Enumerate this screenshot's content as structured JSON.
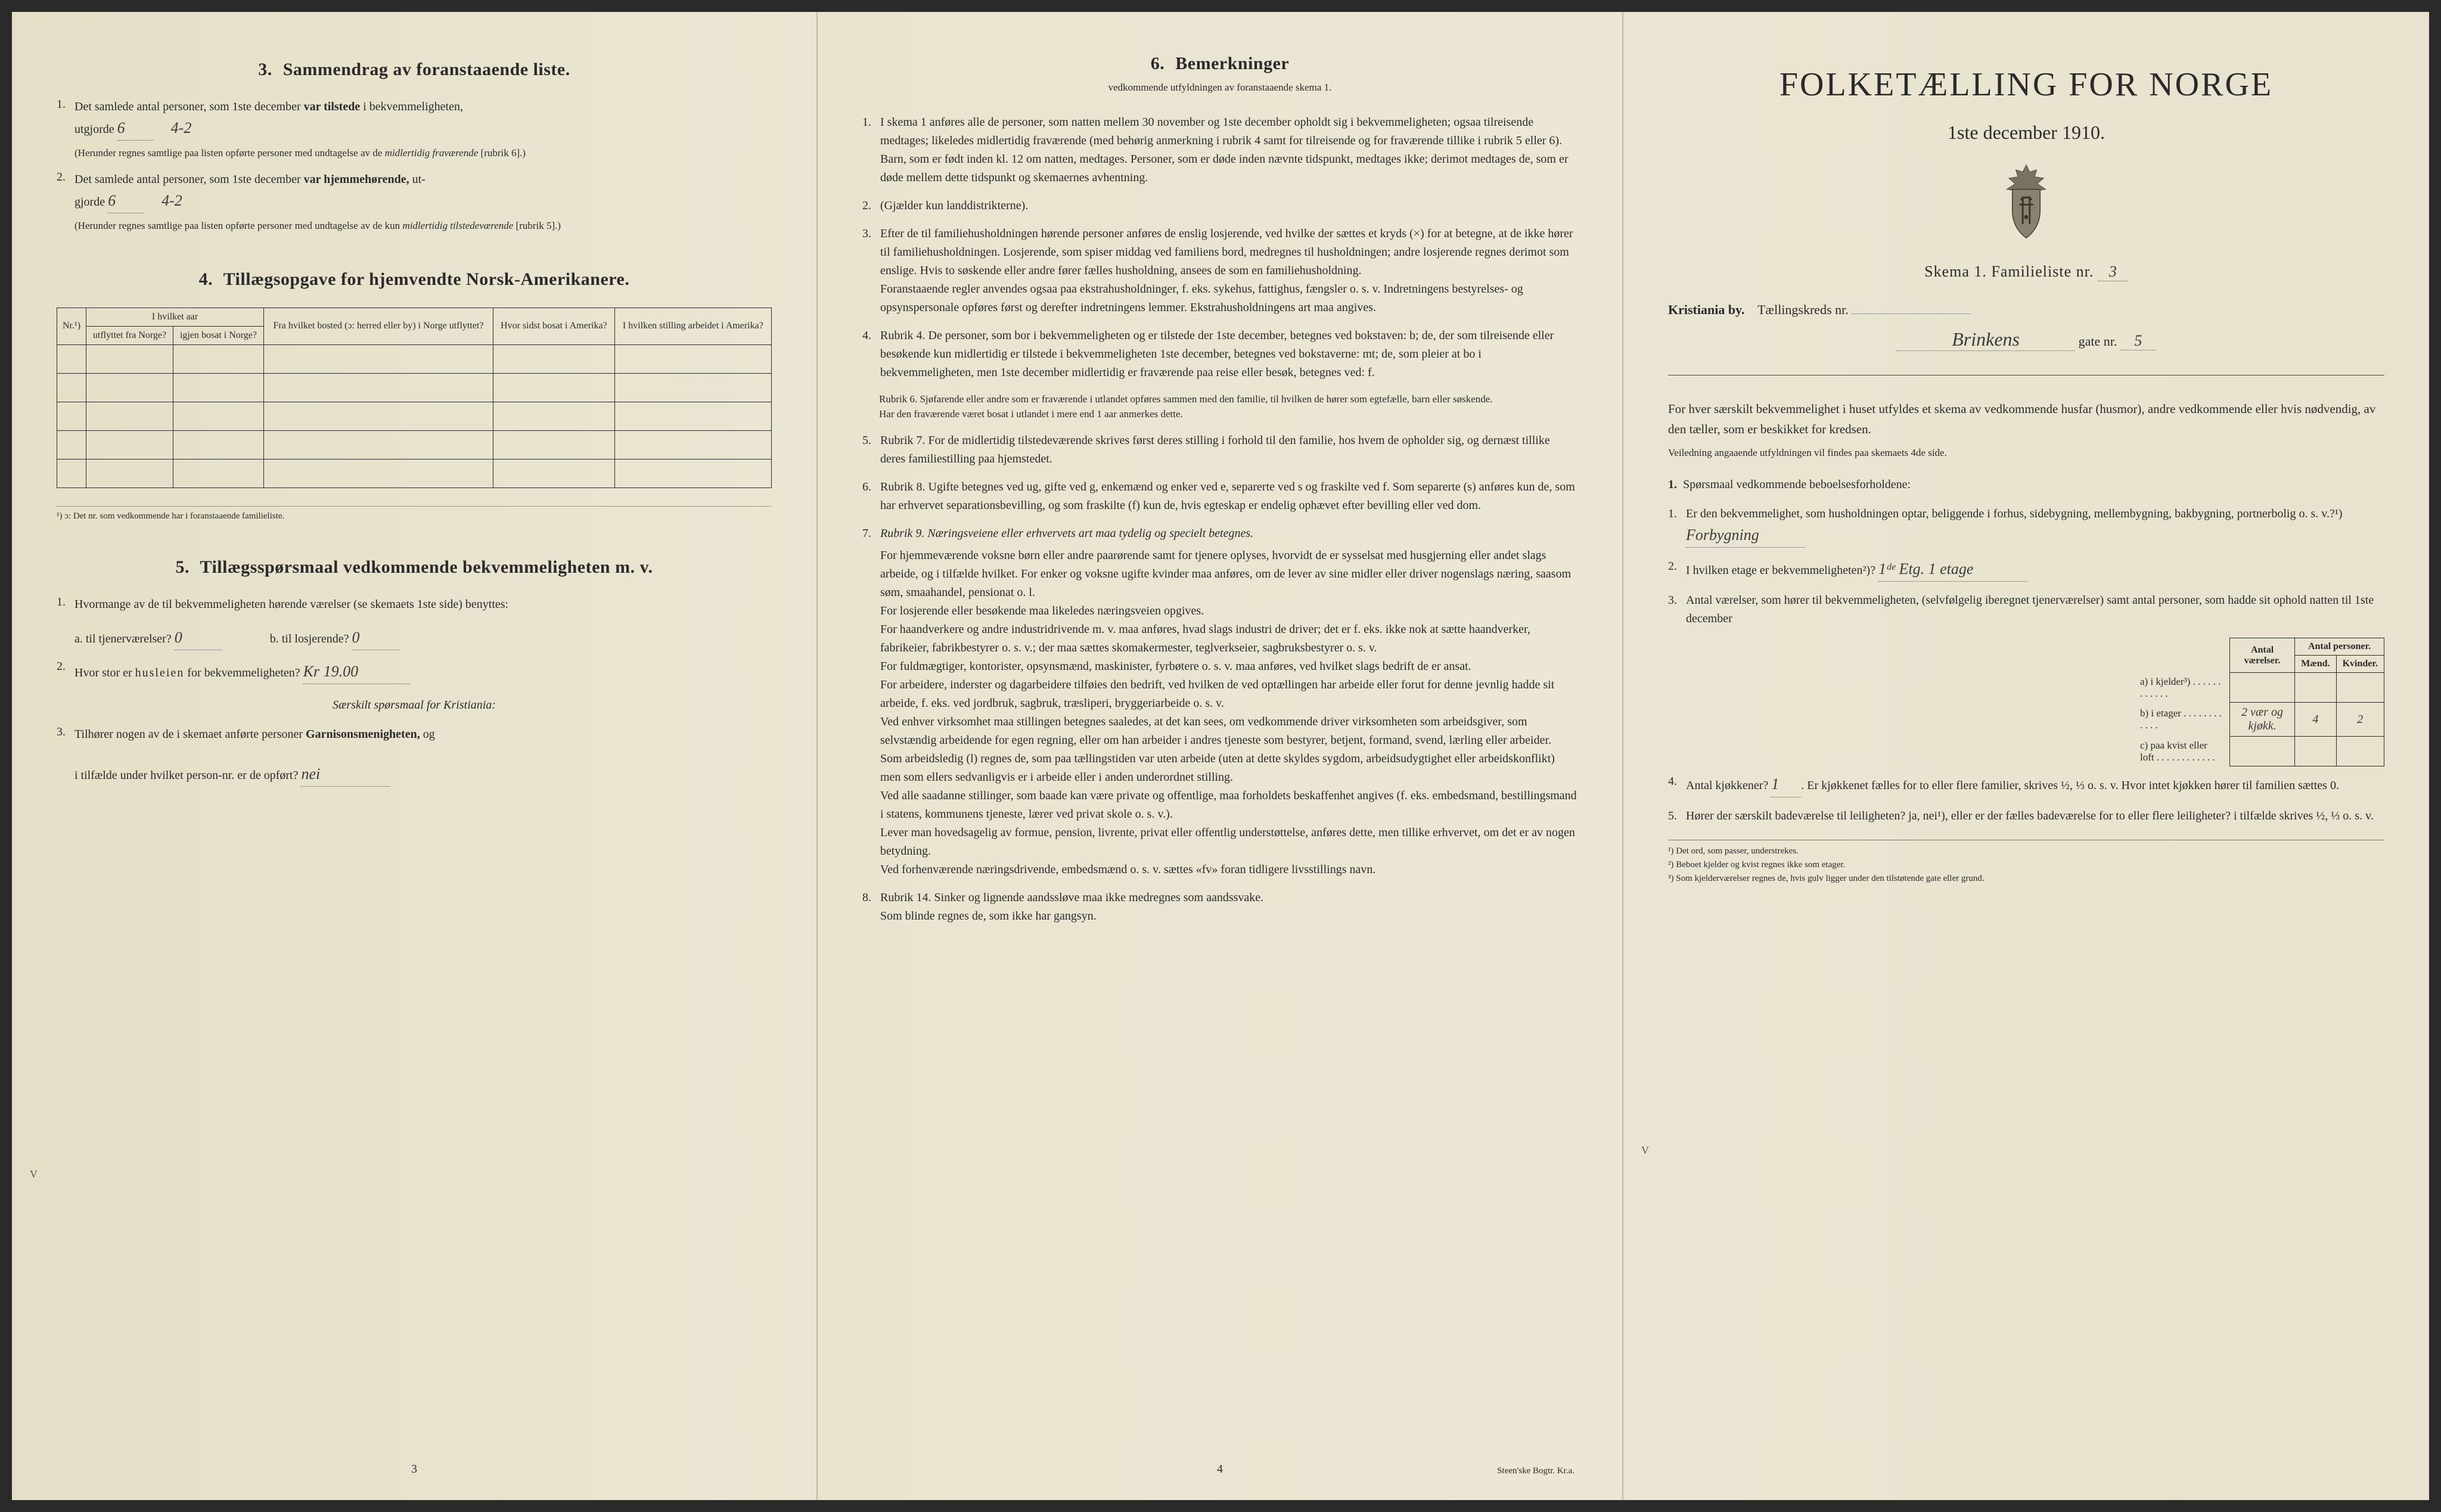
{
  "page1": {
    "s3": {
      "heading_num": "3.",
      "heading": "Sammendrag av foranstaaende liste.",
      "item1_pre": "Det samlede antal personer, som 1ste december",
      "item1_bold": "var tilstede",
      "item1_post": "i bekvemmeligheten,",
      "item1_line2": "utgjorde",
      "item1_hw1": "6",
      "item1_hw2": "4-2",
      "item1_note": "(Herunder regnes samtlige paa listen opførte personer med undtagelse av de",
      "item1_note_em": "midlertidig fraværende",
      "item1_note_end": "[rubrik 6].)",
      "item2_pre": "Det samlede antal personer, som 1ste december",
      "item2_bold": "var hjemmehørende,",
      "item2_post": "ut-",
      "item2_line2": "gjorde",
      "item2_hw1": "6",
      "item2_hw2": "4-2",
      "item2_note": "(Herunder regnes samtlige paa listen opførte personer med undtagelse av de kun",
      "item2_note_em": "midlertidig tilstedeværende",
      "item2_note_end": "[rubrik 5].)"
    },
    "s4": {
      "heading_num": "4.",
      "heading": "Tillægsopgave for hjemvendte Norsk-Amerikanere.",
      "th_nr": "Nr.¹)",
      "th_aar": "I hvilket aar",
      "th_utflyttet": "utflyttet fra Norge?",
      "th_igjen": "igjen bosat i Norge?",
      "th_bosted": "Fra hvilket bosted (ɔ: herred eller by) i Norge utflyttet?",
      "th_sidst": "Hvor sidst bosat i Amerika?",
      "th_stilling": "I hvilken stilling arbeidet i Amerika?",
      "footnote": "¹) ɔ: Det nr. som vedkommende har i foranstaaende familieliste."
    },
    "s5": {
      "heading_num": "5.",
      "heading": "Tillægsspørsmaal vedkommende bekvemmeligheten m. v.",
      "q1": "Hvormange av de til bekvemmeligheten hørende værelser (se skemaets 1ste side) benyttes:",
      "q1a": "a.  til tjenerværelser?",
      "q1a_hw": "0",
      "q1b": "b.  til losjerende?",
      "q1b_hw": "0",
      "q2": "Hvor stor er",
      "q2_em": "husleien",
      "q2_post": "for bekvemmeligheten?",
      "q2_hw": "Kr 19.00",
      "q3_intro": "Særskilt spørsmaal for Kristiania:",
      "q3": "Tilhører nogen av de i skemaet anførte personer",
      "q3_bold": "Garnisonsmenigheten,",
      "q3_post": "og",
      "q3_line2": "i tilfælde under hvilket person-nr. er de opført?",
      "q3_hw": "nei",
      "mark": "V"
    },
    "pagenum": "3"
  },
  "page2": {
    "s6": {
      "heading_num": "6.",
      "heading": "Bemerkninger",
      "subhead": "vedkommende utfyldningen av foranstaaende skema 1.",
      "items": [
        "I skema 1 anføres alle de personer, som natten mellem 30 november og 1ste december opholdt sig i bekvemmeligheten; ogsaa tilreisende medtages; likeledes midlertidig fraværende (med behørig anmerkning i rubrik 4 samt for tilreisende og for fraværende tillike i rubrik 5 eller 6). Barn, som er født inden kl. 12 om natten, medtages. Personer, som er døde inden nævnte tidspunkt, medtages ikke; derimot medtages de, som er døde mellem dette tidspunkt og skemaernes avhentning.",
        "(Gjælder kun landdistrikterne).",
        "Efter de til familiehusholdningen hørende personer anføres de enslig losjerende, ved hvilke der sættes et kryds (×) for at betegne, at de ikke hører til familiehusholdningen. Losjerende, som spiser middag ved familiens bord, medregnes til husholdningen; andre losjerende regnes derimot som enslige. Hvis to søskende eller andre fører fælles husholdning, ansees de som en familiehusholdning.\nForanstaaende regler anvendes ogsaa paa ekstrahusholdninger, f. eks. sykehus, fattighus, fængsler o. s. v. Indretningens bestyrelses- og opsynspersonale opføres først og derefter indretningens lemmer. Ekstrahusholdningens art maa angives."
      ],
      "rubrik4": "Rubrik 4. De personer, som bor i bekvemmeligheten og er tilstede der 1ste december, betegnes ved bokstaven: b; de, der som tilreisende eller besøkende kun midlertidig er tilstede i bekvemmeligheten 1ste december, betegnes ved bokstaverne: mt; de, som pleier at bo i bekvemmeligheten, men 1ste december midlertidig er fraværende paa reise eller besøk, betegnes ved: f.",
      "rubrik6": "Rubrik 6. Sjøfarende eller andre som er fraværende i utlandet opføres sammen med den familie, til hvilken de hører som egtefælle, barn eller søskende.\nHar den fraværende været bosat i utlandet i mere end 1 aar anmerkes dette.",
      "rubrik7": "Rubrik 7. For de midlertidig tilstedeværende skrives først deres stilling i forhold til den familie, hos hvem de opholder sig, og dernæst tillike deres familiestilling paa hjemstedet.",
      "rubrik8": "Rubrik 8. Ugifte betegnes ved ug, gifte ved g, enkemænd og enker ved e, separerte ved s og fraskilte ved f. Som separerte (s) anføres kun de, som har erhvervet separationsbevilling, og som fraskilte (f) kun de, hvis egteskap er endelig ophævet efter bevilling eller ved dom.",
      "rubrik9_head": "Rubrik 9. Næringsveiene eller erhvervets art maa tydelig og specielt betegnes.",
      "rubrik9_body": "For hjemmeværende voksne børn eller andre paarørende samt for tjenere oplyses, hvorvidt de er sysselsat med husgjerning eller andet slags arbeide, og i tilfælde hvilket. For enker og voksne ugifte kvinder maa anføres, om de lever av sine midler eller driver nogenslags næring, saasom søm, smaahandel, pensionat o. l.\nFor losjerende eller besøkende maa likeledes næringsveien opgives.\nFor haandverkere og andre industridrivende m. v. maa anføres, hvad slags industri de driver; det er f. eks. ikke nok at sætte haandverker, fabrikeier, fabrikbestyrer o. s. v.; der maa sættes skomakermester, teglverkseier, sagbruksbestyrer o. s. v.\nFor fuldmægtiger, kontorister, opsynsmænd, maskinister, fyrbøtere o. s. v. maa anføres, ved hvilket slags bedrift de er ansat.\nFor arbeidere, inderster og dagarbeidere tilføies den bedrift, ved hvilken de ved optællingen har arbeide eller forut for denne jevnlig hadde sit arbeide, f. eks. ved jordbruk, sagbruk, træsliperi, bryggeriarbeide o. s. v.\nVed enhver virksomhet maa stillingen betegnes saaledes, at det kan sees, om vedkommende driver virksomheten som arbeidsgiver, som selvstændig arbeidende for egen regning, eller om han arbeider i andres tjeneste som bestyrer, betjent, formand, svend, lærling eller arbeider.\nSom arbeidsledig (l) regnes de, som paa tællingstiden var uten arbeide (uten at dette skyldes sygdom, arbeidsudygtighet eller arbeidskonflikt) men som ellers sedvanligvis er i arbeide eller i anden underordnet stilling.\nVed alle saadanne stillinger, som baade kan være private og offentlige, maa forholdets beskaffenhet angives (f. eks. embedsmand, bestillingsmand i statens, kommunens tjeneste, lærer ved privat skole o. s. v.).\nLever man hovedsagelig av formue, pension, livrente, privat eller offentlig understøttelse, anføres dette, men tillike erhvervet, om det er av nogen betydning.\nVed forhenværende næringsdrivende, embedsmænd o. s. v. sættes «fv» foran tidligere livsstillings navn.",
      "rubrik14": "Rubrik 14. Sinker og lignende aandssløve maa ikke medregnes som aandssvake.\nSom blinde regnes de, som ikke har gangsyn."
    },
    "pagenum": "4",
    "printer": "Steen'ske Bogtr. Kr.a."
  },
  "page3": {
    "title": "FOLKETÆLLING FOR NORGE",
    "subtitle": "1ste december 1910.",
    "skema": "Skema 1.   Familieliste nr.",
    "skema_hw": "3",
    "city": "Kristiania by.",
    "kreds": "Tællingskreds nr.",
    "gate_hw": "Brinkens",
    "gate_post": "gate nr.",
    "gate_nr_hw": "5",
    "intro": "For hver særskilt bekvemmelighet i huset utfyldes et skema av vedkommende husfar (husmor), andre vedkommende eller hvis nødvendig, av den tæller, som er beskikket for kredsen.",
    "intro2": "Veiledning angaaende utfyldningen vil findes paa skemaets 4de side.",
    "s1": {
      "heading_num": "1.",
      "heading": "Spørsmaal vedkommende beboelsesforholdene:",
      "q1": "Er den bekvemmelighet, som husholdningen optar, beliggende i forhus, sidebygning, mellembygning, bakbygning, portnerbolig o. s. v.?¹)",
      "q1_hw": "Forbygning",
      "q2": "I hvilken etage er bekvemmeligheten²)?",
      "q2_hw": "1ᵈᵉ Etg.   1 etage",
      "q3": "Antal værelser, som hører til bekvemmeligheten, (selvfølgelig iberegnet tjenerværelser) samt antal personer, som hadde sit ophold natten til 1ste december",
      "table": {
        "th1": "Antal værelser.",
        "th2": "Antal personer.",
        "th2a": "Mænd.",
        "th2b": "Kvinder.",
        "rows": [
          {
            "label": "a) i kjelder³)",
            "c1_hw": "",
            "c2_hw": "",
            "c3_hw": ""
          },
          {
            "label": "b) i etager",
            "c1_hw": "2 vær og kjøkk.",
            "c2_hw": "4",
            "c3_hw": "2"
          },
          {
            "label": "c) paa kvist eller loft",
            "c1_hw": "",
            "c2_hw": "",
            "c3_hw": ""
          }
        ]
      },
      "q4": "Antal kjøkkener?",
      "q4_hw": "1",
      "q4_post": "Er kjøkkenet fælles for to eller flere familier, skrives ½, ⅓ o. s. v. Hvor intet kjøkken hører til familien sættes 0.",
      "q5": "Hører der særskilt badeværelse til leiligheten? ja, nei¹), eller er der fælles badeværelse for to eller flere leiligheter? i tilfælde skrives ½, ⅓ o. s. v."
    },
    "footnotes": [
      "¹) Det ord, som passer, understrekes.",
      "²) Beboet kjelder og kvist regnes ikke som etager.",
      "³) Som kjelderværelser regnes de, hvis gulv ligger under den tilstøtende gate eller grund."
    ],
    "mark": "V"
  }
}
